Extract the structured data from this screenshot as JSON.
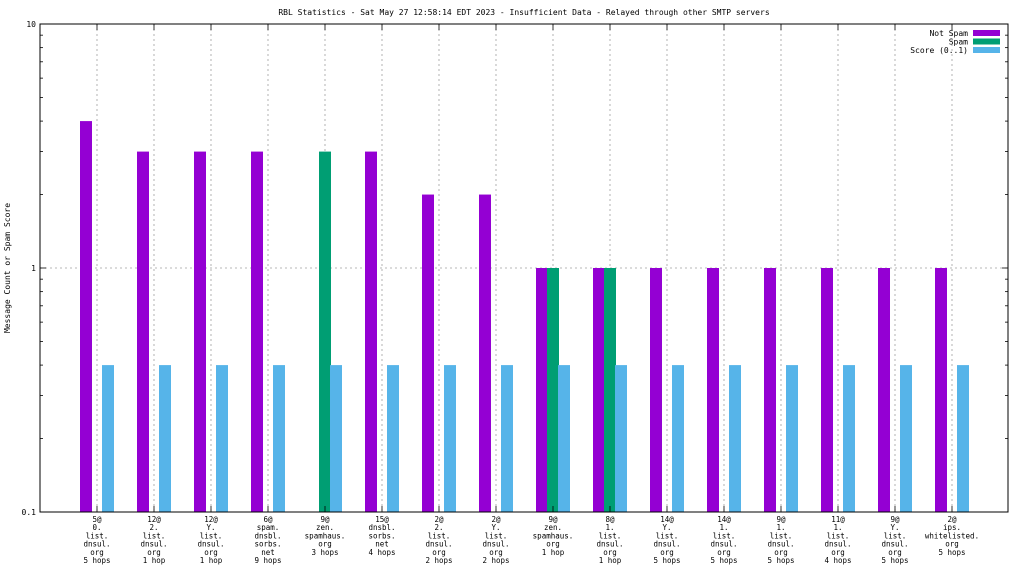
{
  "chart_data": {
    "type": "bar",
    "title": "RBL Statistics - Sat May 27 12:58:14 EDT 2023 - Insufficient Data - Relayed through other SMTP servers",
    "xlabel": "",
    "ylabel": "Message Count or Spam Score",
    "yscale": "log",
    "ylim": [
      0.1,
      10
    ],
    "yticks": [
      "0.1",
      "1",
      "10"
    ],
    "grid": true,
    "legend_position": "top-right",
    "categories": [
      [
        "5@",
        "0.",
        "list.",
        "dnsul.",
        "org",
        "5 hops"
      ],
      [
        "12@",
        "2.",
        "list.",
        "dnsul.",
        "org",
        "1 hop"
      ],
      [
        "12@",
        "Y.",
        "list.",
        "dnsul.",
        "org",
        "1 hop"
      ],
      [
        "6@",
        "spam.",
        "dnsbl.",
        "sorbs.",
        "net",
        "9 hops"
      ],
      [
        "9@",
        "zen.",
        "spamhaus.",
        "org",
        "3 hops"
      ],
      [
        "15@",
        "dnsbl.",
        "sorbs.",
        "net",
        "4 hops"
      ],
      [
        "2@",
        "2.",
        "list.",
        "dnsul.",
        "org",
        "2 hops"
      ],
      [
        "2@",
        "Y.",
        "list.",
        "dnsul.",
        "org",
        "2 hops"
      ],
      [
        "9@",
        "zen.",
        "spamhaus.",
        "org",
        "1 hop"
      ],
      [
        "8@",
        "1.",
        "list.",
        "dnsul.",
        "org",
        "1 hop"
      ],
      [
        "14@",
        "Y.",
        "list.",
        "dnsul.",
        "org",
        "5 hops"
      ],
      [
        "14@",
        "1.",
        "list.",
        "dnsul.",
        "org",
        "5 hops"
      ],
      [
        "9@",
        "1.",
        "list.",
        "dnsul.",
        "org",
        "5 hops"
      ],
      [
        "11@",
        "1.",
        "list.",
        "dnsul.",
        "org",
        "4 hops"
      ],
      [
        "9@",
        "Y.",
        "list.",
        "dnsul.",
        "org",
        "5 hops"
      ],
      [
        "2@",
        "ips.",
        "whitelisted.",
        "org",
        "5 hops"
      ]
    ],
    "series": [
      {
        "name": "Not Spam",
        "color": "#9400d3",
        "values": [
          4,
          3,
          3,
          3,
          null,
          3,
          2,
          2,
          1,
          1,
          1,
          1,
          1,
          1,
          1,
          1
        ]
      },
      {
        "name": "Spam",
        "color": "#009e73",
        "values": [
          null,
          null,
          null,
          null,
          3,
          null,
          null,
          null,
          1,
          1,
          null,
          null,
          null,
          null,
          null,
          null
        ]
      },
      {
        "name": "Score (0..1)",
        "color": "#56b4e9",
        "values": [
          0.4,
          0.4,
          0.4,
          0.4,
          0.4,
          0.4,
          0.4,
          0.4,
          0.4,
          0.4,
          0.4,
          0.4,
          0.4,
          0.4,
          0.4,
          0.4
        ]
      }
    ]
  }
}
